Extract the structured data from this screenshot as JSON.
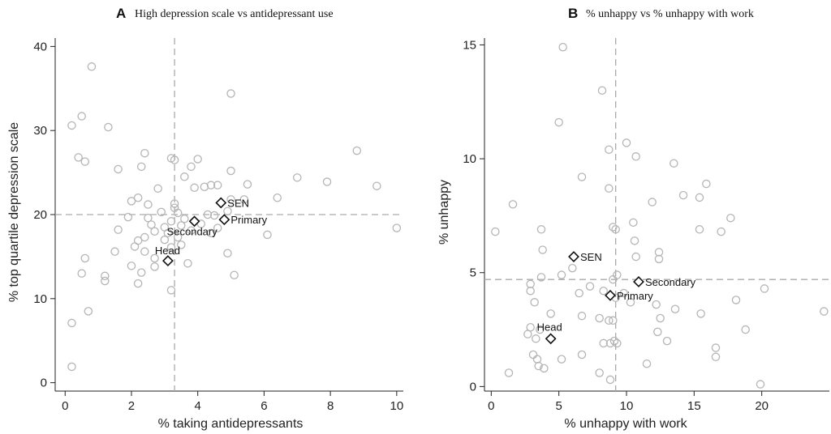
{
  "chart_data": [
    {
      "type": "scatter",
      "panel": "A",
      "title": "High depression scale vs antidepressant use",
      "xlabel": "% taking antidepressants",
      "ylabel": "% top quartile depression scale",
      "xlim": [
        -0.3,
        10.2
      ],
      "ylim": [
        -1,
        41
      ],
      "xticks": [
        0,
        2,
        4,
        6,
        8,
        10
      ],
      "yticks": [
        0,
        10,
        20,
        30,
        40
      ],
      "refline_x": 3.3,
      "refline_y": 20,
      "points": [
        [
          0.8,
          37.6
        ],
        [
          0.5,
          31.7
        ],
        [
          0.2,
          30.6
        ],
        [
          1.3,
          30.4
        ],
        [
          0.4,
          26.8
        ],
        [
          0.6,
          26.3
        ],
        [
          1.6,
          25.4
        ],
        [
          2.4,
          27.3
        ],
        [
          2.3,
          25.7
        ],
        [
          3.2,
          26.7
        ],
        [
          3.3,
          26.5
        ],
        [
          4.0,
          26.6
        ],
        [
          3.8,
          25.7
        ],
        [
          3.6,
          24.5
        ],
        [
          4.2,
          23.3
        ],
        [
          3.9,
          23.2
        ],
        [
          4.4,
          23.5
        ],
        [
          4.6,
          23.5
        ],
        [
          5.0,
          34.4
        ],
        [
          5.0,
          25.2
        ],
        [
          5.5,
          23.6
        ],
        [
          6.4,
          22.0
        ],
        [
          7.0,
          24.4
        ],
        [
          7.9,
          23.9
        ],
        [
          8.8,
          27.6
        ],
        [
          9.4,
          23.4
        ],
        [
          10.0,
          18.4
        ],
        [
          2.2,
          22.0
        ],
        [
          2.0,
          21.6
        ],
        [
          2.5,
          21.2
        ],
        [
          2.8,
          23.1
        ],
        [
          3.3,
          21.3
        ],
        [
          3.3,
          20.8
        ],
        [
          3.6,
          19.5
        ],
        [
          3.2,
          19.2
        ],
        [
          3.0,
          18.5
        ],
        [
          2.6,
          18.8
        ],
        [
          2.7,
          18.0
        ],
        [
          2.4,
          17.3
        ],
        [
          2.2,
          16.9
        ],
        [
          2.1,
          16.2
        ],
        [
          2.4,
          15.6
        ],
        [
          2.7,
          14.8
        ],
        [
          2.7,
          13.8
        ],
        [
          2.3,
          13.1
        ],
        [
          2.2,
          11.8
        ],
        [
          1.2,
          12.1
        ],
        [
          1.2,
          12.7
        ],
        [
          2.0,
          13.9
        ],
        [
          1.5,
          15.6
        ],
        [
          0.6,
          14.8
        ],
        [
          0.5,
          13.0
        ],
        [
          0.7,
          8.5
        ],
        [
          0.2,
          7.1
        ],
        [
          0.2,
          1.9
        ],
        [
          3.2,
          11.0
        ],
        [
          3.0,
          17.0
        ],
        [
          3.4,
          17.3
        ],
        [
          3.5,
          16.4
        ],
        [
          3.2,
          16.1
        ],
        [
          3.7,
          14.2
        ],
        [
          3.4,
          20.2
        ],
        [
          4.3,
          20.0
        ],
        [
          4.5,
          19.9
        ],
        [
          4.9,
          20.4
        ],
        [
          5.0,
          21.8
        ],
        [
          5.4,
          21.8
        ],
        [
          4.6,
          18.4
        ],
        [
          4.4,
          17.8
        ],
        [
          4.9,
          15.4
        ],
        [
          5.1,
          12.8
        ],
        [
          6.1,
          17.6
        ],
        [
          2.9,
          20.3
        ],
        [
          1.9,
          19.7
        ],
        [
          1.6,
          18.2
        ],
        [
          2.5,
          19.6
        ],
        [
          3.5,
          18.7
        ],
        [
          3.8,
          18.1
        ],
        [
          4.1,
          18.9
        ],
        [
          3.1,
          17.8
        ]
      ],
      "highlights": [
        {
          "label": "SEN",
          "x": 4.7,
          "y": 21.4
        },
        {
          "label": "Primary",
          "x": 4.8,
          "y": 19.4
        },
        {
          "label": "Secondary",
          "x": 3.9,
          "y": 19.2
        },
        {
          "label": "Head",
          "x": 3.1,
          "y": 14.5
        }
      ]
    },
    {
      "type": "scatter",
      "panel": "B",
      "title": "% unhappy vs % unhappy with work",
      "xlabel": "% unhappy with work",
      "ylabel": "% unhappy",
      "xlim": [
        -0.5,
        25
      ],
      "ylim": [
        -0.2,
        15.3
      ],
      "xticks": [
        0,
        5,
        10,
        15,
        20
      ],
      "yticks": [
        0,
        5,
        10,
        15
      ],
      "refline_x": 9.2,
      "refline_y": 4.7,
      "points": [
        [
          5.3,
          14.9
        ],
        [
          8.2,
          13.0
        ],
        [
          5.0,
          11.6
        ],
        [
          10.0,
          10.7
        ],
        [
          8.7,
          10.4
        ],
        [
          10.7,
          10.1
        ],
        [
          13.5,
          9.8
        ],
        [
          6.7,
          9.2
        ],
        [
          8.7,
          8.7
        ],
        [
          15.9,
          8.9
        ],
        [
          14.2,
          8.4
        ],
        [
          15.4,
          8.3
        ],
        [
          1.6,
          8.0
        ],
        [
          11.9,
          8.1
        ],
        [
          10.5,
          7.2
        ],
        [
          17.7,
          7.4
        ],
        [
          15.4,
          6.9
        ],
        [
          17.0,
          6.8
        ],
        [
          0.3,
          6.8
        ],
        [
          3.7,
          6.9
        ],
        [
          9.0,
          7.0
        ],
        [
          9.2,
          6.9
        ],
        [
          3.8,
          6.0
        ],
        [
          10.6,
          6.4
        ],
        [
          12.4,
          5.9
        ],
        [
          12.4,
          5.6
        ],
        [
          10.7,
          5.7
        ],
        [
          6.0,
          5.2
        ],
        [
          5.2,
          4.9
        ],
        [
          3.7,
          4.8
        ],
        [
          9.3,
          4.9
        ],
        [
          9.0,
          4.7
        ],
        [
          2.9,
          4.5
        ],
        [
          2.9,
          4.2
        ],
        [
          3.2,
          3.7
        ],
        [
          6.5,
          4.1
        ],
        [
          7.3,
          4.4
        ],
        [
          8.3,
          4.2
        ],
        [
          9.2,
          3.9
        ],
        [
          9.8,
          4.1
        ],
        [
          10.3,
          3.7
        ],
        [
          12.2,
          3.6
        ],
        [
          13.6,
          3.4
        ],
        [
          15.5,
          3.2
        ],
        [
          18.1,
          3.8
        ],
        [
          20.2,
          4.3
        ],
        [
          24.6,
          3.3
        ],
        [
          4.4,
          3.2
        ],
        [
          6.7,
          3.1
        ],
        [
          8.0,
          3.0
        ],
        [
          8.7,
          2.9
        ],
        [
          9.0,
          2.9
        ],
        [
          12.5,
          3.0
        ],
        [
          13.0,
          2.0
        ],
        [
          12.3,
          2.4
        ],
        [
          16.6,
          1.7
        ],
        [
          16.6,
          1.3
        ],
        [
          18.8,
          2.5
        ],
        [
          2.9,
          2.6
        ],
        [
          2.7,
          2.3
        ],
        [
          3.6,
          2.5
        ],
        [
          3.3,
          2.1
        ],
        [
          3.1,
          1.4
        ],
        [
          3.4,
          1.2
        ],
        [
          3.5,
          0.9
        ],
        [
          3.9,
          0.8
        ],
        [
          5.2,
          1.2
        ],
        [
          6.7,
          1.4
        ],
        [
          8.3,
          1.9
        ],
        [
          8.8,
          1.9
        ],
        [
          9.3,
          1.9
        ],
        [
          9.1,
          2.0
        ],
        [
          11.5,
          1.0
        ],
        [
          1.3,
          0.6
        ],
        [
          8.0,
          0.6
        ],
        [
          8.8,
          0.3
        ],
        [
          19.9,
          0.1
        ]
      ],
      "highlights": [
        {
          "label": "SEN",
          "x": 6.1,
          "y": 5.7
        },
        {
          "label": "Secondary",
          "x": 10.9,
          "y": 4.6
        },
        {
          "label": "Primary",
          "x": 8.8,
          "y": 4.0
        },
        {
          "label": "Head",
          "x": 4.4,
          "y": 2.1
        }
      ]
    }
  ]
}
